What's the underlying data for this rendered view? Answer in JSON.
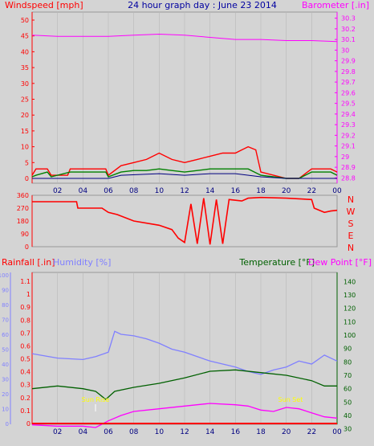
{
  "colors": {
    "bg": "#d4d4d4",
    "wind_axis": "#ff0000",
    "baro": "#ff00ff",
    "title": "#0000a0",
    "wind_avg": "#008000",
    "wind_gust": "#ff0000",
    "wind_lull": "#000080",
    "direction": "#ff0000",
    "rain": "#ff0000",
    "humidity": "#8080ff",
    "temperature": "#006000",
    "dewpoint": "#ff00ff",
    "sun": "#ffff00",
    "axis_time": "#000080",
    "grid": "#b8b8b8"
  },
  "titles": {
    "top_left": "Windspeed [mph]",
    "top_center": "24 hour graph day : June 23 2014",
    "top_right": "Barometer [.in]",
    "rain": "Rainfall [.in]",
    "humidity": "Humidity [%]",
    "temperature": "Temperature [°F]",
    "dewpoint": "Dew Point [°F]",
    "sunrise": "Sun Rise",
    "sunset": "Sun Set"
  },
  "chart_data": [
    {
      "type": "line",
      "name": "wind_barometer",
      "xlabels": [
        "02",
        "04",
        "06",
        "08",
        "10",
        "12",
        "14",
        "16",
        "18",
        "20",
        "22",
        "00"
      ],
      "xlim": [
        0,
        24
      ],
      "wind_ticks": [
        "0",
        "5",
        "10",
        "15",
        "20",
        "25",
        "30",
        "35",
        "40",
        "45",
        "50"
      ],
      "wind_lim": [
        0,
        50
      ],
      "baro_ticks": [
        "28.8",
        "28.9",
        "29",
        "29.1",
        "29.2",
        "29.3",
        "29.4",
        "29.5",
        "29.6",
        "29.7",
        "29.8",
        "29.9",
        "30",
        "30.1",
        "30.2",
        "30.3"
      ],
      "baro_lim": [
        28.75,
        30.35
      ],
      "barometer": [
        [
          0,
          30.14
        ],
        [
          2,
          30.13
        ],
        [
          4,
          30.13
        ],
        [
          6,
          30.13
        ],
        [
          8,
          30.14
        ],
        [
          10,
          30.15
        ],
        [
          12,
          30.14
        ],
        [
          14,
          30.12
        ],
        [
          16,
          30.1
        ],
        [
          18,
          30.1
        ],
        [
          20,
          30.09
        ],
        [
          22,
          30.09
        ],
        [
          24,
          30.08
        ]
      ],
      "gust": [
        [
          0,
          1
        ],
        [
          0.3,
          3
        ],
        [
          1.2,
          3
        ],
        [
          1.5,
          1
        ],
        [
          2.8,
          1
        ],
        [
          3,
          3
        ],
        [
          5.8,
          3
        ],
        [
          6,
          1
        ],
        [
          7,
          4
        ],
        [
          8,
          5
        ],
        [
          9,
          6
        ],
        [
          10,
          8
        ],
        [
          11,
          6
        ],
        [
          12,
          5
        ],
        [
          13,
          6
        ],
        [
          14,
          7
        ],
        [
          15,
          8
        ],
        [
          16,
          8
        ],
        [
          16.5,
          9
        ],
        [
          17,
          10
        ],
        [
          17.6,
          9
        ],
        [
          18,
          2
        ],
        [
          20,
          0
        ],
        [
          21,
          0
        ],
        [
          22,
          3
        ],
        [
          23.5,
          3
        ],
        [
          24,
          2
        ]
      ],
      "avg": [
        [
          0,
          0.5
        ],
        [
          0.3,
          1
        ],
        [
          1.2,
          2
        ],
        [
          1.5,
          0.5
        ],
        [
          3,
          2
        ],
        [
          5.8,
          2
        ],
        [
          6,
          0.5
        ],
        [
          7,
          2
        ],
        [
          8,
          2.5
        ],
        [
          9,
          2.5
        ],
        [
          10,
          3
        ],
        [
          11,
          2.5
        ],
        [
          12,
          2
        ],
        [
          13,
          2.5
        ],
        [
          14,
          3
        ],
        [
          15,
          3
        ],
        [
          16,
          3
        ],
        [
          17,
          3
        ],
        [
          18,
          1
        ],
        [
          20,
          0
        ],
        [
          21,
          0
        ],
        [
          22,
          2
        ],
        [
          23.5,
          2
        ],
        [
          24,
          1
        ]
      ],
      "lull": [
        [
          0,
          0
        ],
        [
          6,
          0
        ],
        [
          7,
          1
        ],
        [
          10,
          1.5
        ],
        [
          12,
          1
        ],
        [
          14,
          1.5
        ],
        [
          16,
          1.5
        ],
        [
          18,
          0.5
        ],
        [
          20,
          0
        ],
        [
          24,
          0
        ]
      ]
    },
    {
      "type": "line",
      "name": "wind_direction",
      "xlim": [
        0,
        24
      ],
      "dir_ticks": [
        "0",
        "90",
        "180",
        "270",
        "360"
      ],
      "dir_lim": [
        0,
        360
      ],
      "compass": [
        "N",
        "W",
        "S",
        "E",
        "N"
      ],
      "direction": [
        [
          0,
          315
        ],
        [
          3.5,
          315
        ],
        [
          3.6,
          270
        ],
        [
          5.5,
          270
        ],
        [
          6,
          240
        ],
        [
          6.7,
          225
        ],
        [
          8,
          180
        ],
        [
          10,
          150
        ],
        [
          11,
          120
        ],
        [
          11.5,
          60
        ],
        [
          12,
          30
        ],
        [
          12.5,
          300
        ],
        [
          13,
          20
        ],
        [
          13.5,
          340
        ],
        [
          14,
          15
        ],
        [
          14.5,
          330
        ],
        [
          15,
          20
        ],
        [
          15.5,
          330
        ],
        [
          16.5,
          320
        ],
        [
          17,
          340
        ],
        [
          18,
          345
        ],
        [
          20,
          340
        ],
        [
          22,
          330
        ],
        [
          22.2,
          270
        ],
        [
          23,
          240
        ],
        [
          23.5,
          250
        ],
        [
          24,
          255
        ]
      ]
    },
    {
      "type": "line",
      "name": "rain_humidity_temperature",
      "xlabels": [
        "02",
        "04",
        "06",
        "08",
        "10",
        "12",
        "14",
        "16",
        "18",
        "20",
        "22",
        "00"
      ],
      "xlim": [
        0,
        24
      ],
      "rain_ticks": [
        "0",
        "0.1",
        "0.2",
        "0.3",
        "0.4",
        "0.5",
        "0.6",
        "0.7",
        "0.8",
        "0.9",
        "1",
        "1.1"
      ],
      "rain_lim": [
        0,
        1.15
      ],
      "humidity_ticks": [
        "0",
        "10",
        "20",
        "30",
        "40",
        "50",
        "60",
        "70",
        "80",
        "90",
        "100"
      ],
      "humidity_lim": [
        0,
        100
      ],
      "temp_ticks": [
        "30",
        "40",
        "50",
        "60",
        "70",
        "80",
        "90",
        "100",
        "110",
        "120",
        "130",
        "140"
      ],
      "temp_lim": [
        25,
        145
      ],
      "rainfall": [
        [
          0,
          0
        ],
        [
          24,
          0
        ]
      ],
      "humidity": [
        [
          0,
          47
        ],
        [
          2,
          44
        ],
        [
          4,
          43
        ],
        [
          5,
          45
        ],
        [
          6,
          48
        ],
        [
          6.5,
          62
        ],
        [
          7,
          60
        ],
        [
          8,
          59
        ],
        [
          9,
          57
        ],
        [
          10,
          54
        ],
        [
          11,
          50
        ],
        [
          12,
          48
        ],
        [
          13,
          45
        ],
        [
          14,
          42
        ],
        [
          15,
          40
        ],
        [
          16,
          38
        ],
        [
          17,
          35
        ],
        [
          18,
          33
        ],
        [
          19,
          36
        ],
        [
          20,
          38
        ],
        [
          21,
          42
        ],
        [
          22,
          40
        ],
        [
          23,
          46
        ],
        [
          24,
          42
        ]
      ],
      "temperature": [
        [
          0,
          60
        ],
        [
          2,
          62
        ],
        [
          4,
          60
        ],
        [
          5,
          58
        ],
        [
          5.8,
          52
        ],
        [
          6.5,
          58
        ],
        [
          8,
          61
        ],
        [
          10,
          64
        ],
        [
          12,
          68
        ],
        [
          14,
          73
        ],
        [
          16,
          74
        ],
        [
          18,
          72
        ],
        [
          20,
          70
        ],
        [
          22,
          66
        ],
        [
          23,
          62
        ],
        [
          24,
          62
        ]
      ],
      "dewpoint": [
        [
          0,
          33
        ],
        [
          2,
          32
        ],
        [
          4,
          32
        ],
        [
          5,
          31
        ],
        [
          6,
          36
        ],
        [
          7,
          40
        ],
        [
          8,
          43
        ],
        [
          10,
          45
        ],
        [
          12,
          47
        ],
        [
          14,
          49
        ],
        [
          16,
          48
        ],
        [
          17,
          47
        ],
        [
          18,
          44
        ],
        [
          19,
          43
        ],
        [
          20,
          46
        ],
        [
          21,
          45
        ],
        [
          22,
          42
        ],
        [
          23,
          39
        ],
        [
          24,
          38
        ]
      ]
    }
  ]
}
